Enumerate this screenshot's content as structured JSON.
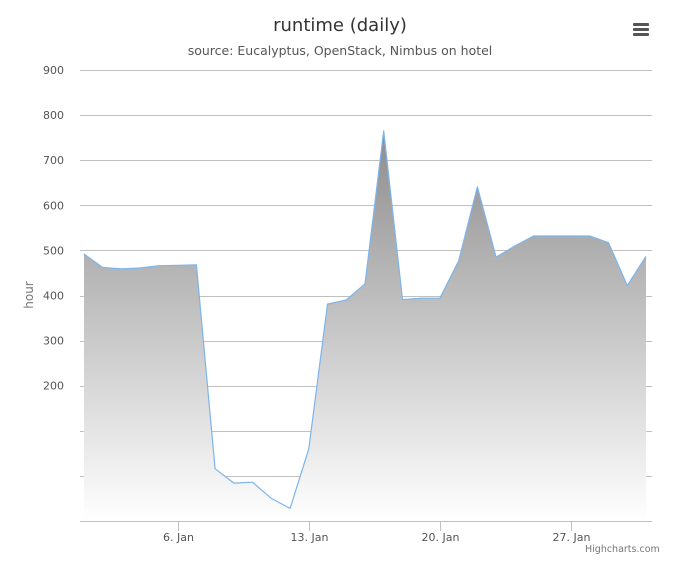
{
  "chart": {
    "title": "runtime (daily)",
    "subtitle": "source: Eucalyptus, OpenStack, Nimbus on hotel",
    "credits": "Highcharts.com",
    "menu_icon": "hamburger-menu-icon",
    "colors": {
      "line": "#7cb5ec",
      "fill_top": "#8c8c8c",
      "fill_bottom": "#ffffff",
      "grid": "#c0c0c0",
      "title": "#333333",
      "text": "#555555"
    }
  },
  "chart_data": {
    "type": "area",
    "title": "runtime (daily)",
    "subtitle": "source: Eucalyptus, OpenStack, Nimbus on hotel",
    "xlabel": "",
    "ylabel": "hour",
    "ylim": [
      -100,
      900
    ],
    "y_ticks": [
      {
        "value": 200,
        "label": "200"
      },
      {
        "value": 300,
        "label": "300"
      },
      {
        "value": 400,
        "label": "400"
      },
      {
        "value": 500,
        "label": "500"
      },
      {
        "value": 600,
        "label": "600"
      },
      {
        "value": 700,
        "label": "700"
      },
      {
        "value": 800,
        "label": "800"
      },
      {
        "value": 900,
        "label": "900"
      }
    ],
    "y_gridlines": [
      0,
      100,
      200,
      300,
      400,
      500,
      600,
      700,
      800,
      900
    ],
    "x_range_days": [
      "2014-01-01",
      "2014-01-31"
    ],
    "x_ticks": [
      {
        "date": "2014-01-06",
        "label": "6. Jan"
      },
      {
        "date": "2014-01-13",
        "label": "13. Jan"
      },
      {
        "date": "2014-01-20",
        "label": "20. Jan"
      },
      {
        "date": "2014-01-27",
        "label": "27. Jan"
      }
    ],
    "grid": true,
    "legend": "none",
    "series": [
      {
        "x": [
          "2014-01-01",
          "2014-01-02",
          "2014-01-03",
          "2014-01-04",
          "2014-01-05",
          "2014-01-06",
          "2014-01-07",
          "2014-01-08",
          "2014-01-09",
          "2014-01-10",
          "2014-01-11",
          "2014-01-12",
          "2014-01-13",
          "2014-01-14",
          "2014-01-15",
          "2014-01-16",
          "2014-01-17",
          "2014-01-18",
          "2014-01-19",
          "2014-01-20",
          "2014-01-21",
          "2014-01-22",
          "2014-01-23",
          "2014-01-24",
          "2014-01-25",
          "2014-01-26",
          "2014-01-27",
          "2014-01-28",
          "2014-01-29",
          "2014-01-30",
          "2014-01-31"
        ],
        "y": [
          492,
          462,
          459,
          461,
          466,
          467,
          468,
          16,
          -16,
          -14,
          -50,
          -72,
          60,
          381,
          390,
          426,
          765,
          391,
          394,
          394,
          477,
          641,
          485,
          510,
          532,
          532,
          532,
          532,
          517,
          422,
          487
        ]
      }
    ]
  }
}
